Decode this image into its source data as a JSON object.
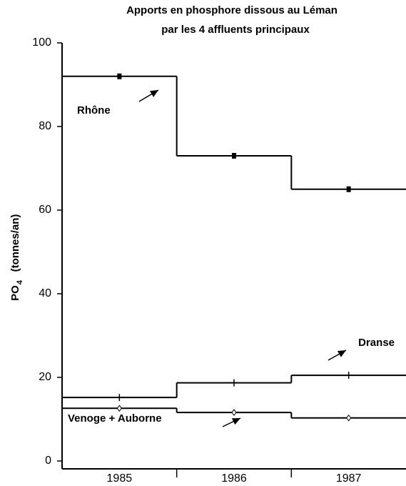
{
  "chart_data": {
    "type": "step",
    "title_lines": [
      "Apports en phosphore dissous au Léman",
      "par les 4 affluents principaux"
    ],
    "ylabel_parts": [
      "PO",
      "4",
      "(tonnes/an)"
    ],
    "categories": [
      "1985",
      "1986",
      "1987"
    ],
    "series": [
      {
        "name": "Rhône",
        "color": "#000000",
        "values": [
          92,
          73,
          65
        ]
      },
      {
        "name": "Dranse",
        "color": "#000000",
        "values": [
          15.2,
          18.7,
          20.5
        ]
      },
      {
        "name": "Venoge + Auborne",
        "color": "#000000",
        "values": [
          12.6,
          11.6,
          10.3
        ]
      }
    ],
    "ylim": [
      0,
      100
    ],
    "yticks": [
      0,
      20,
      40,
      60,
      80,
      100
    ]
  }
}
